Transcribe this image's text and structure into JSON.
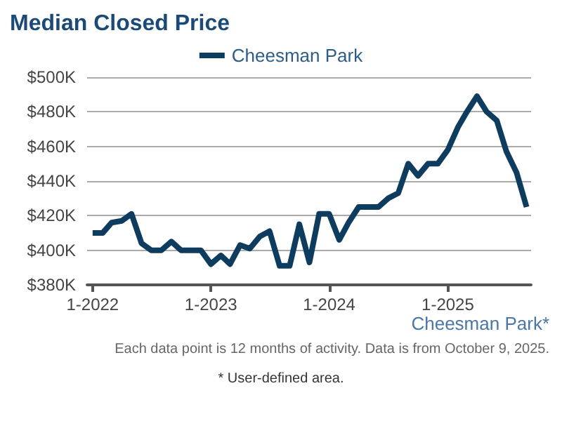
{
  "chart_data": {
    "type": "line",
    "title": "Median Closed Price",
    "x": [
      "2022-01",
      "2022-02",
      "2022-03",
      "2022-04",
      "2022-05",
      "2022-06",
      "2022-07",
      "2022-08",
      "2022-09",
      "2022-10",
      "2022-11",
      "2022-12",
      "2023-01",
      "2023-02",
      "2023-03",
      "2023-04",
      "2023-05",
      "2023-06",
      "2023-07",
      "2023-08",
      "2023-09",
      "2023-10",
      "2023-11",
      "2023-12",
      "2024-01",
      "2024-02",
      "2024-03",
      "2024-04",
      "2024-05",
      "2024-06",
      "2024-07",
      "2024-08",
      "2024-09",
      "2024-10",
      "2024-11",
      "2024-12",
      "2025-01",
      "2025-02",
      "2025-03",
      "2025-04",
      "2025-05",
      "2025-06",
      "2025-07",
      "2025-08",
      "2025-09"
    ],
    "series": [
      {
        "name": "Cheesman Park",
        "color": "#0d3c5e",
        "values": [
          410,
          410,
          416,
          417,
          421,
          404,
          400,
          400,
          405,
          400,
          400,
          400,
          392,
          397,
          392,
          403,
          401,
          408,
          411,
          391,
          391,
          415,
          393,
          421,
          421,
          406,
          416,
          425,
          425,
          425,
          430,
          433,
          450,
          443,
          450,
          450,
          458,
          471,
          480,
          489,
          480,
          475,
          457,
          445,
          425
        ]
      }
    ],
    "xlim": [
      "2021-12-15",
      "2025-09-15"
    ],
    "xticks": [
      {
        "value": "2022-01",
        "label": "1-2022"
      },
      {
        "value": "2023-01",
        "label": "1-2023"
      },
      {
        "value": "2024-01",
        "label": "1-2024"
      },
      {
        "value": "2025-01",
        "label": "1-2025"
      }
    ],
    "ylim": [
      380,
      500
    ],
    "yticks": [
      {
        "value": 380,
        "label": "$380K"
      },
      {
        "value": 400,
        "label": "$400K"
      },
      {
        "value": 420,
        "label": "$420K"
      },
      {
        "value": 440,
        "label": "$440K"
      },
      {
        "value": 460,
        "label": "$460K"
      },
      {
        "value": 480,
        "label": "$480K"
      },
      {
        "value": 500,
        "label": "$500K"
      }
    ],
    "grid": "y",
    "legend": "top",
    "marker": "none",
    "line_style": "solid",
    "annotations": [
      "Cheesman Park*",
      "Each data point is 12 months of activity. Data is from October 9, 2025.",
      "* User-defined area."
    ]
  }
}
